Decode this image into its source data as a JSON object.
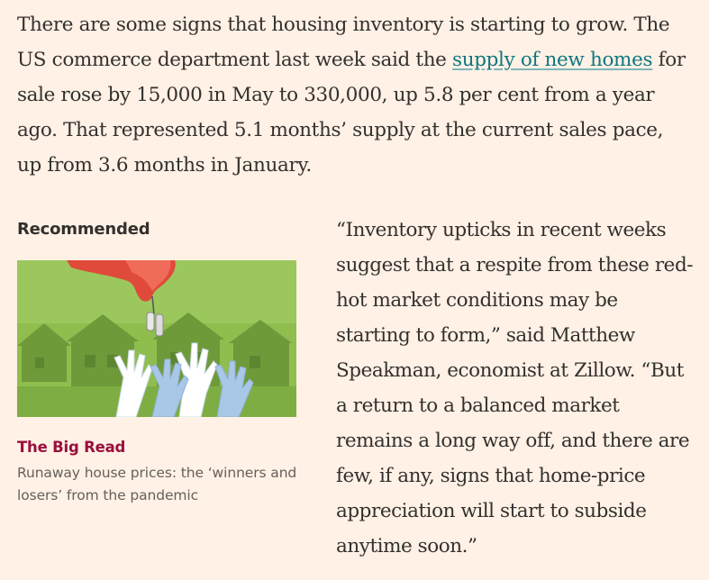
{
  "article": {
    "intro_before": "There are some signs that housing inventory is starting to grow. The US commerce department last week said the ",
    "intro_link": "supply of new homes",
    "intro_after": " for sale rose by 15,000 in May to 330,000, up 5.8 per cent from a year ago. That represented 5.1 months’ supply at the current sales pace, up from 3.6 months in January.",
    "quote": "“Inventory upticks in recent weeks suggest that a respite from these red-hot market conditions may be starting to form,” said Matthew Speakman, economist at Zillow. “But a return to a balanced market remains a long way off, and there are few, if any, signs that home-price appreciation will start to subside anytime soon.”"
  },
  "recommended": {
    "label": "Recommended",
    "tag": "The Big Read",
    "title": "Runaway house prices: the ‘winners and losers’ from the pandemic",
    "image_icon": "hand-dropping-keys-illustration"
  },
  "colors": {
    "background": "#fff1e5",
    "link": "#0d7680",
    "tag": "#990f3d",
    "image_green": "#8fbe4f"
  }
}
